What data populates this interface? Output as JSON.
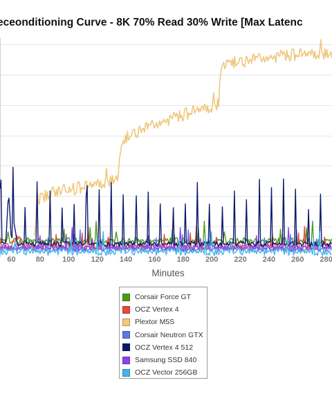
{
  "chart_data": {
    "type": "line",
    "title": "eceonditioning Curve - 8K 70% Read 30% Write [Max Latenc",
    "xlabel": "Minutes",
    "ylabel": "",
    "x_ticks": [
      "60",
      "80",
      "100",
      "120",
      "140",
      "160",
      "180",
      "200",
      "220",
      "240",
      "260",
      "280"
    ],
    "xlim": [
      52,
      284
    ],
    "ylim": [
      0,
      170
    ],
    "grid": true,
    "legend_position": "bottom",
    "series": [
      {
        "name": "Corsair Force GT",
        "color": "#4d9a1b",
        "x": [
          52,
          80,
          110,
          140,
          170,
          200,
          230,
          260,
          284
        ],
        "y": [
          12,
          12,
          12,
          12,
          12,
          12,
          12,
          12,
          12
        ]
      },
      {
        "name": "OCZ Vertex 4",
        "color": "#e84a3c",
        "x": [
          52,
          60,
          64,
          68,
          100,
          130,
          160,
          190,
          220,
          250,
          284
        ],
        "y": [
          8,
          8,
          16,
          8,
          8,
          8,
          8,
          8,
          8,
          8,
          8
        ]
      },
      {
        "name": "Plextor M5S",
        "color": "#efc77e",
        "x": [
          76,
          77,
          78,
          80,
          90,
          100,
          110,
          120,
          130,
          134,
          136,
          137,
          140,
          150,
          160,
          170,
          180,
          190,
          200,
          205,
          206,
          207,
          210,
          220,
          230,
          240,
          250,
          260,
          270,
          276,
          284
        ],
        "y": [
          15,
          30,
          45,
          46,
          50,
          52,
          54,
          57,
          60,
          62,
          78,
          85,
          92,
          98,
          102,
          106,
          110,
          114,
          117,
          120,
          145,
          150,
          150,
          151,
          153,
          154,
          156,
          157,
          158,
          159,
          158
        ]
      },
      {
        "name": "Corsair Neutron GTX",
        "color": "#5a78e6",
        "x": [
          52,
          100,
          150,
          200,
          250,
          284
        ],
        "y": [
          6,
          6,
          6,
          6,
          6,
          6
        ]
      },
      {
        "name": "OCZ Vertex 4 512",
        "color": "#0c1a6e",
        "x": [
          52,
          56,
          58,
          60,
          62,
          64,
          80,
          100,
          120,
          140,
          160,
          180,
          200,
          220,
          240,
          260,
          284
        ],
        "y": [
          10,
          10,
          52,
          10,
          28,
          10,
          10,
          10,
          10,
          10,
          10,
          10,
          10,
          10,
          10,
          10,
          10
        ]
      },
      {
        "name": "Samsung SSD 840",
        "color": "#8c44ea",
        "x": [
          52,
          100,
          150,
          200,
          250,
          284
        ],
        "y": [
          7,
          7,
          7,
          7,
          7,
          7
        ]
      },
      {
        "name": "OCZ Vector 256GB",
        "color": "#45b4e8",
        "x": [
          52,
          100,
          150,
          200,
          250,
          284
        ],
        "y": [
          4,
          4,
          4,
          4,
          4,
          4
        ]
      }
    ]
  }
}
